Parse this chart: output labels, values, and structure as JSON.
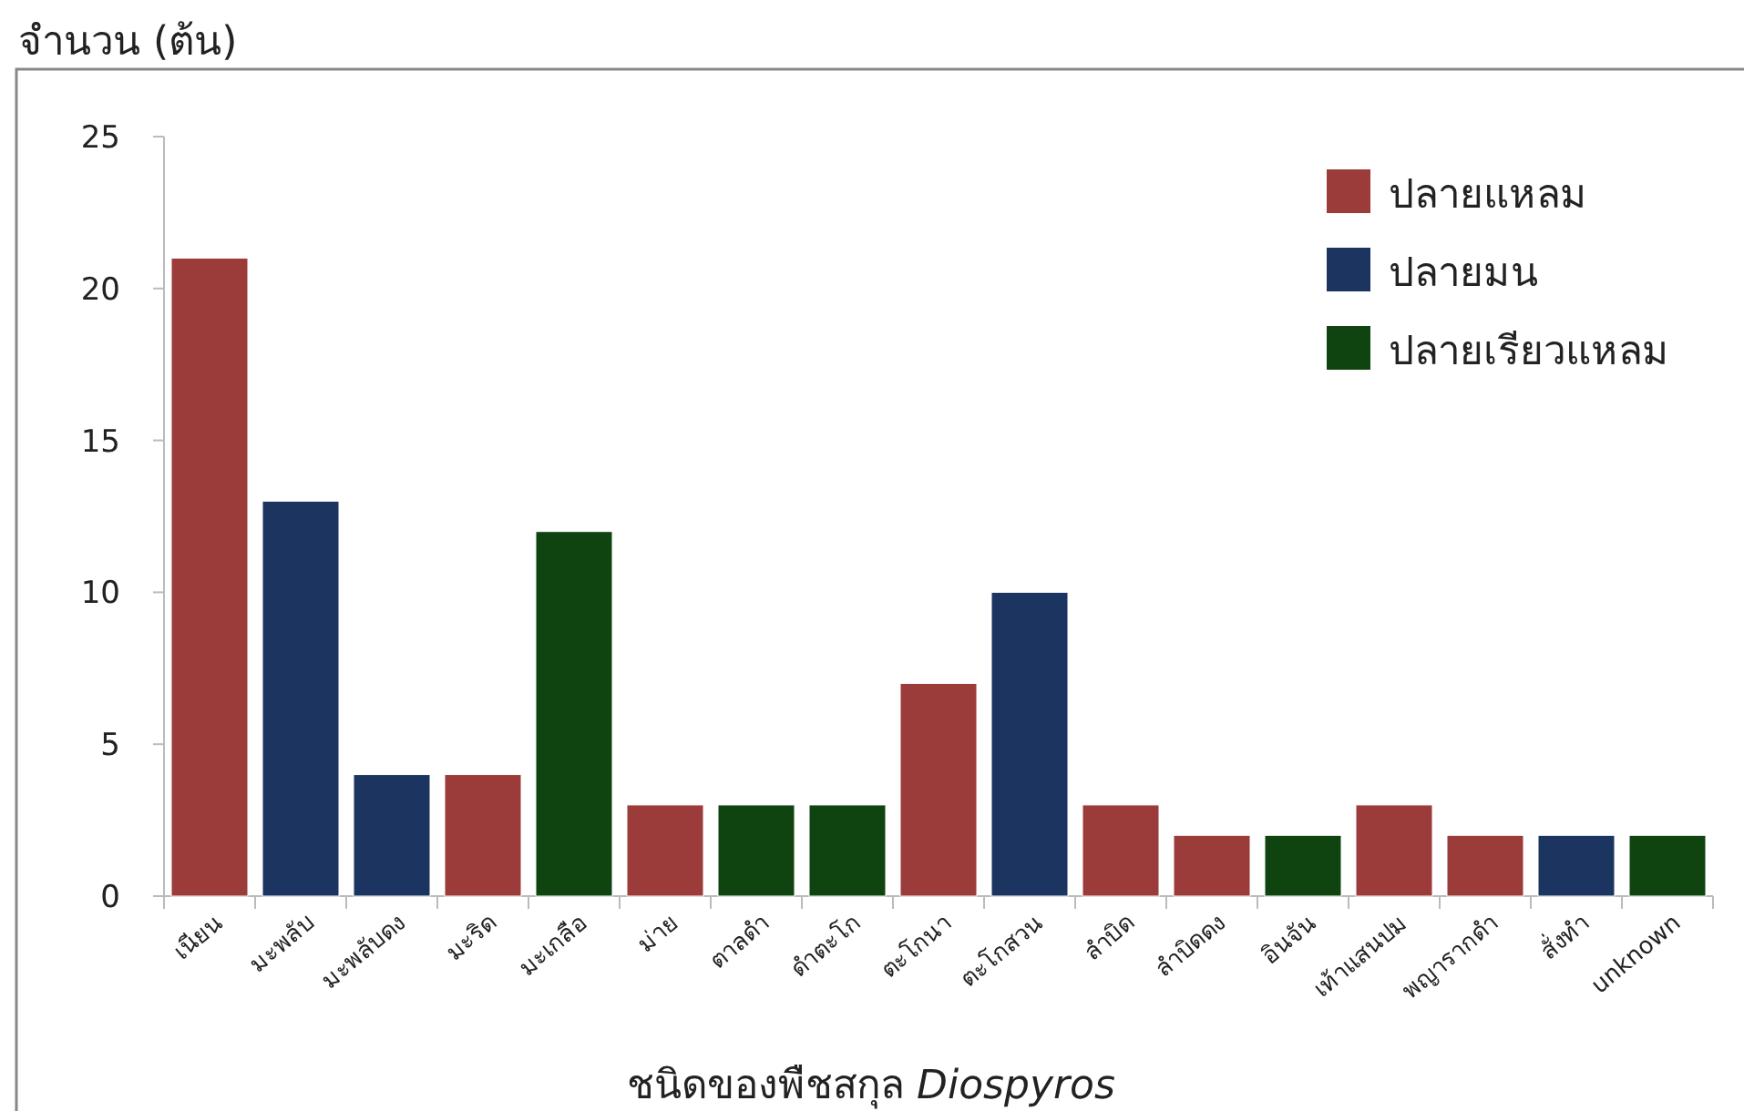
{
  "chart_data": {
    "type": "bar",
    "stacked": true,
    "xlabel": "ชนิดของพืชสกุล *Diospyros*",
    "ylabel": "จำนวน (ต้น)",
    "categories": [
      "เนียน",
      "มะพลับ",
      "มะพลับดง",
      "มะริด",
      "มะเกลือ",
      "ม่าย",
      "ตาลดำ",
      "ดำตะโก",
      "ตะโกนา",
      "ตะโกสวน",
      "ลำบิด",
      "ลำบิดดง",
      "อินจัน",
      "เท้าแสนปม",
      "พญารากดำ",
      "สั่งทำ",
      "unknown"
    ],
    "series": [
      {
        "name": "ปลายแหลม",
        "color": "#9b3b3a",
        "values": [
          21,
          null,
          null,
          4,
          null,
          3,
          null,
          null,
          7,
          null,
          3,
          2,
          null,
          3,
          2,
          null,
          null
        ]
      },
      {
        "name": "ปลายมน",
        "color": "#1c3560",
        "values": [
          null,
          13,
          4,
          null,
          null,
          null,
          null,
          null,
          null,
          10,
          null,
          null,
          null,
          null,
          null,
          2,
          null
        ]
      },
      {
        "name": "ปลายเรียวแหลม",
        "color": "#0f4410",
        "values": [
          null,
          null,
          null,
          null,
          12,
          null,
          3,
          3,
          null,
          null,
          null,
          null,
          2,
          null,
          null,
          null,
          2
        ]
      }
    ],
    "ylim": [
      0,
      25
    ],
    "yticks": [
      0,
      5,
      10,
      15,
      20,
      25
    ],
    "grid": false,
    "legend": "top right"
  }
}
